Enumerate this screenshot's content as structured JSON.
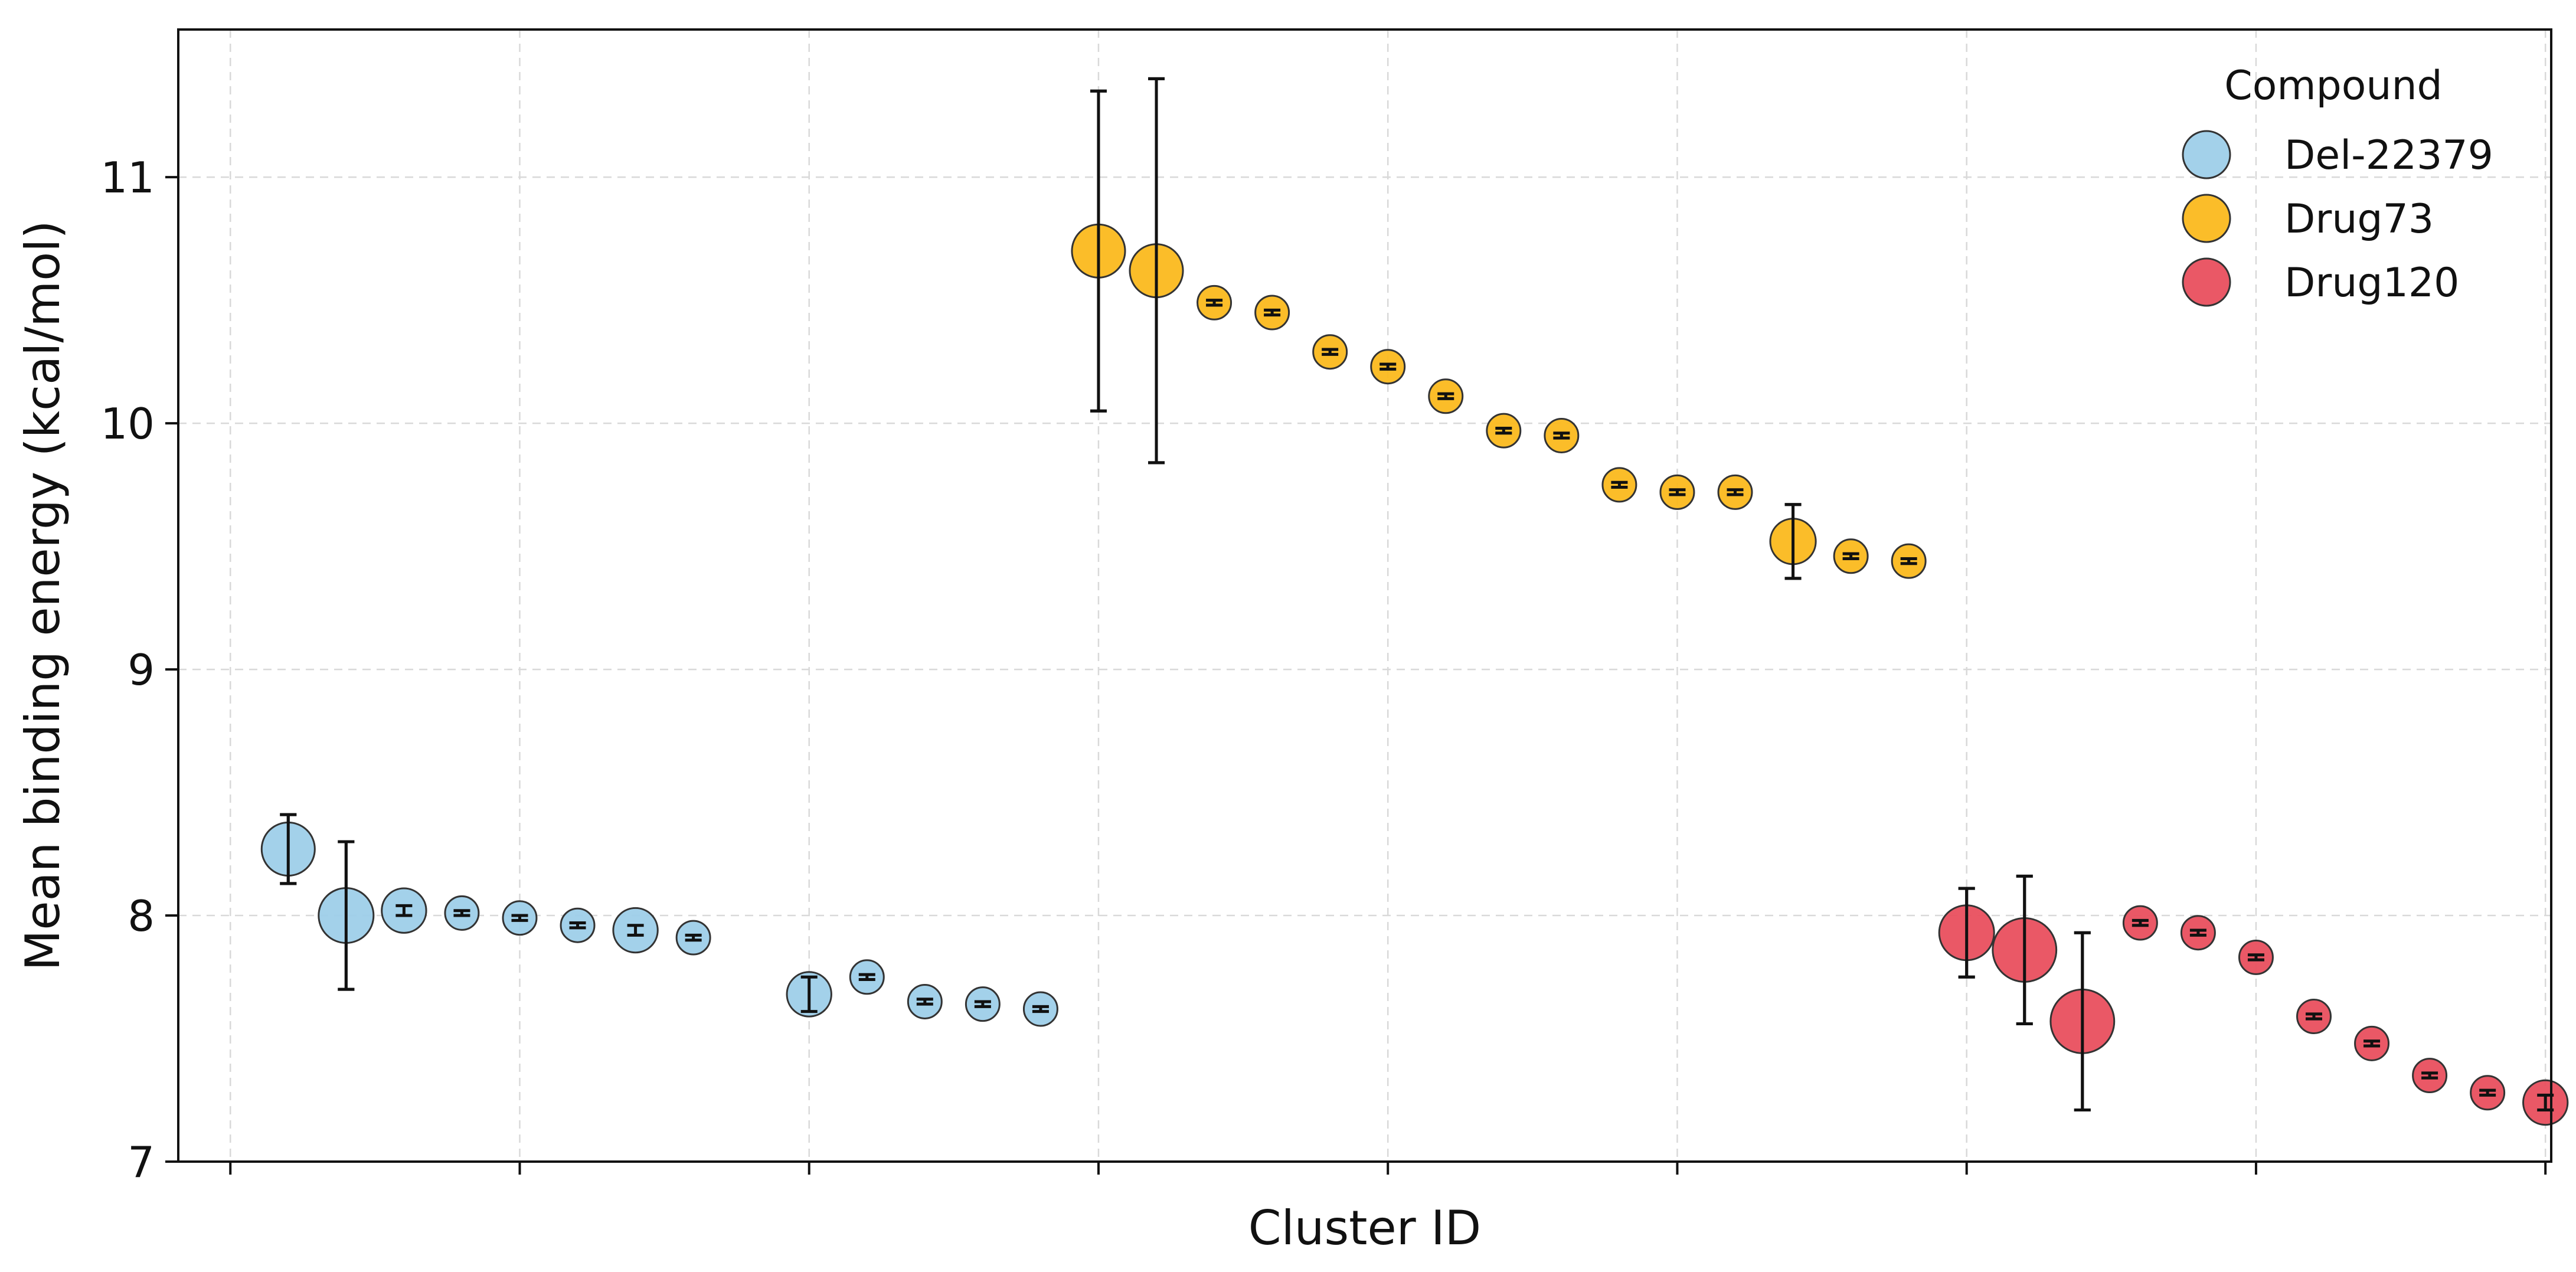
{
  "chart_data": {
    "type": "scatter",
    "title": "",
    "xlabel": "Cluster ID",
    "ylabel": "Mean binding energy (kcal/mol)",
    "ylim": [
      7,
      11.6
    ],
    "yticks": [
      7,
      8,
      9,
      10,
      11
    ],
    "xlim": [
      -0.9,
      40.1
    ],
    "xticks": [
      0,
      5,
      10,
      15,
      20,
      25,
      30,
      35,
      40
    ],
    "xtick_labels_visible": false,
    "grid": true,
    "legend": {
      "title": "Compound",
      "placement": "top-right"
    },
    "size_encoding": "marker area scales with cluster weight",
    "series": [
      {
        "name": "Del-22379",
        "color": "#9ecfe9",
        "points": [
          {
            "x": 1,
            "y": 8.27,
            "err": 0.14,
            "weight": 3.0
          },
          {
            "x": 2,
            "y": 8.0,
            "err": 0.3,
            "weight": 3.2
          },
          {
            "x": 3,
            "y": 8.02,
            "err": 0.02,
            "weight": 2.1
          },
          {
            "x": 4,
            "y": 8.01,
            "err": 0.01,
            "weight": 1.2
          },
          {
            "x": 5,
            "y": 7.99,
            "err": 0.01,
            "weight": 1.2
          },
          {
            "x": 6,
            "y": 7.96,
            "err": 0.01,
            "weight": 1.2
          },
          {
            "x": 7,
            "y": 7.94,
            "err": 0.02,
            "weight": 2.1
          },
          {
            "x": 8,
            "y": 7.91,
            "err": 0.01,
            "weight": 1.2
          },
          {
            "x": 10,
            "y": 7.68,
            "err": 0.07,
            "weight": 2.1
          },
          {
            "x": 11,
            "y": 7.75,
            "err": 0.01,
            "weight": 1.2
          },
          {
            "x": 12,
            "y": 7.65,
            "err": 0.01,
            "weight": 1.2
          },
          {
            "x": 13,
            "y": 7.64,
            "err": 0.01,
            "weight": 1.2
          },
          {
            "x": 14,
            "y": 7.62,
            "err": 0.01,
            "weight": 1.2
          }
        ]
      },
      {
        "name": "Drug73",
        "color": "#fbb91e",
        "points": [
          {
            "x": 15,
            "y": 10.7,
            "err": 0.65,
            "weight": 3.0
          },
          {
            "x": 16,
            "y": 10.62,
            "err": 0.78,
            "weight": 3.0
          },
          {
            "x": 17,
            "y": 10.49,
            "err": 0.01,
            "weight": 1.2
          },
          {
            "x": 18,
            "y": 10.45,
            "err": 0.01,
            "weight": 1.2
          },
          {
            "x": 19,
            "y": 10.29,
            "err": 0.01,
            "weight": 1.2
          },
          {
            "x": 20,
            "y": 10.23,
            "err": 0.01,
            "weight": 1.2
          },
          {
            "x": 21,
            "y": 10.11,
            "err": 0.01,
            "weight": 1.2
          },
          {
            "x": 22,
            "y": 9.97,
            "err": 0.01,
            "weight": 1.2
          },
          {
            "x": 23,
            "y": 9.95,
            "err": 0.01,
            "weight": 1.2
          },
          {
            "x": 24,
            "y": 9.75,
            "err": 0.01,
            "weight": 1.2
          },
          {
            "x": 25,
            "y": 9.72,
            "err": 0.01,
            "weight": 1.2
          },
          {
            "x": 26,
            "y": 9.72,
            "err": 0.01,
            "weight": 1.2
          },
          {
            "x": 27,
            "y": 9.52,
            "err": 0.15,
            "weight": 2.2
          },
          {
            "x": 28,
            "y": 9.46,
            "err": 0.01,
            "weight": 1.2
          },
          {
            "x": 29,
            "y": 9.44,
            "err": 0.01,
            "weight": 1.2
          }
        ]
      },
      {
        "name": "Drug120",
        "color": "#e94f5e",
        "points": [
          {
            "x": 30,
            "y": 7.93,
            "err": 0.18,
            "weight": 3.2
          },
          {
            "x": 31,
            "y": 7.86,
            "err": 0.3,
            "weight": 4.3
          },
          {
            "x": 32,
            "y": 7.57,
            "err": 0.36,
            "weight": 4.3
          },
          {
            "x": 33,
            "y": 7.97,
            "err": 0.01,
            "weight": 1.2
          },
          {
            "x": 34,
            "y": 7.93,
            "err": 0.01,
            "weight": 1.2
          },
          {
            "x": 35,
            "y": 7.83,
            "err": 0.01,
            "weight": 1.2
          },
          {
            "x": 36,
            "y": 7.59,
            "err": 0.01,
            "weight": 1.2
          },
          {
            "x": 37,
            "y": 7.48,
            "err": 0.01,
            "weight": 1.2
          },
          {
            "x": 38,
            "y": 7.35,
            "err": 0.01,
            "weight": 1.2
          },
          {
            "x": 39,
            "y": 7.28,
            "err": 0.01,
            "weight": 1.2
          },
          {
            "x": 40,
            "y": 7.24,
            "err": 0.03,
            "weight": 2.1
          }
        ]
      }
    ]
  }
}
